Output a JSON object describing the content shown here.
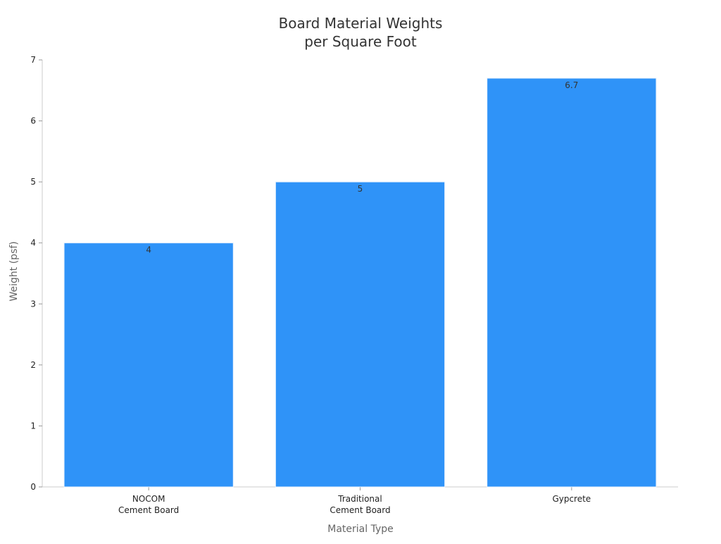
{
  "chart_data": {
    "type": "bar",
    "title": [
      "Board Material Weights",
      "per Square Foot"
    ],
    "xlabel": "Material Type",
    "ylabel": "Weight (psf)",
    "categories": [
      [
        "NOCOM",
        "Cement Board"
      ],
      [
        "Traditional",
        "Cement Board"
      ],
      [
        "Gypcrete"
      ]
    ],
    "values": [
      4,
      5,
      6.7
    ],
    "data_labels": [
      "4",
      "5",
      "6.7"
    ],
    "ylim": [
      0,
      7
    ],
    "yticks": [
      0,
      1,
      2,
      3,
      4,
      5,
      6,
      7
    ],
    "bar_color": "#2f93f8",
    "grid": false,
    "legend": "none"
  }
}
